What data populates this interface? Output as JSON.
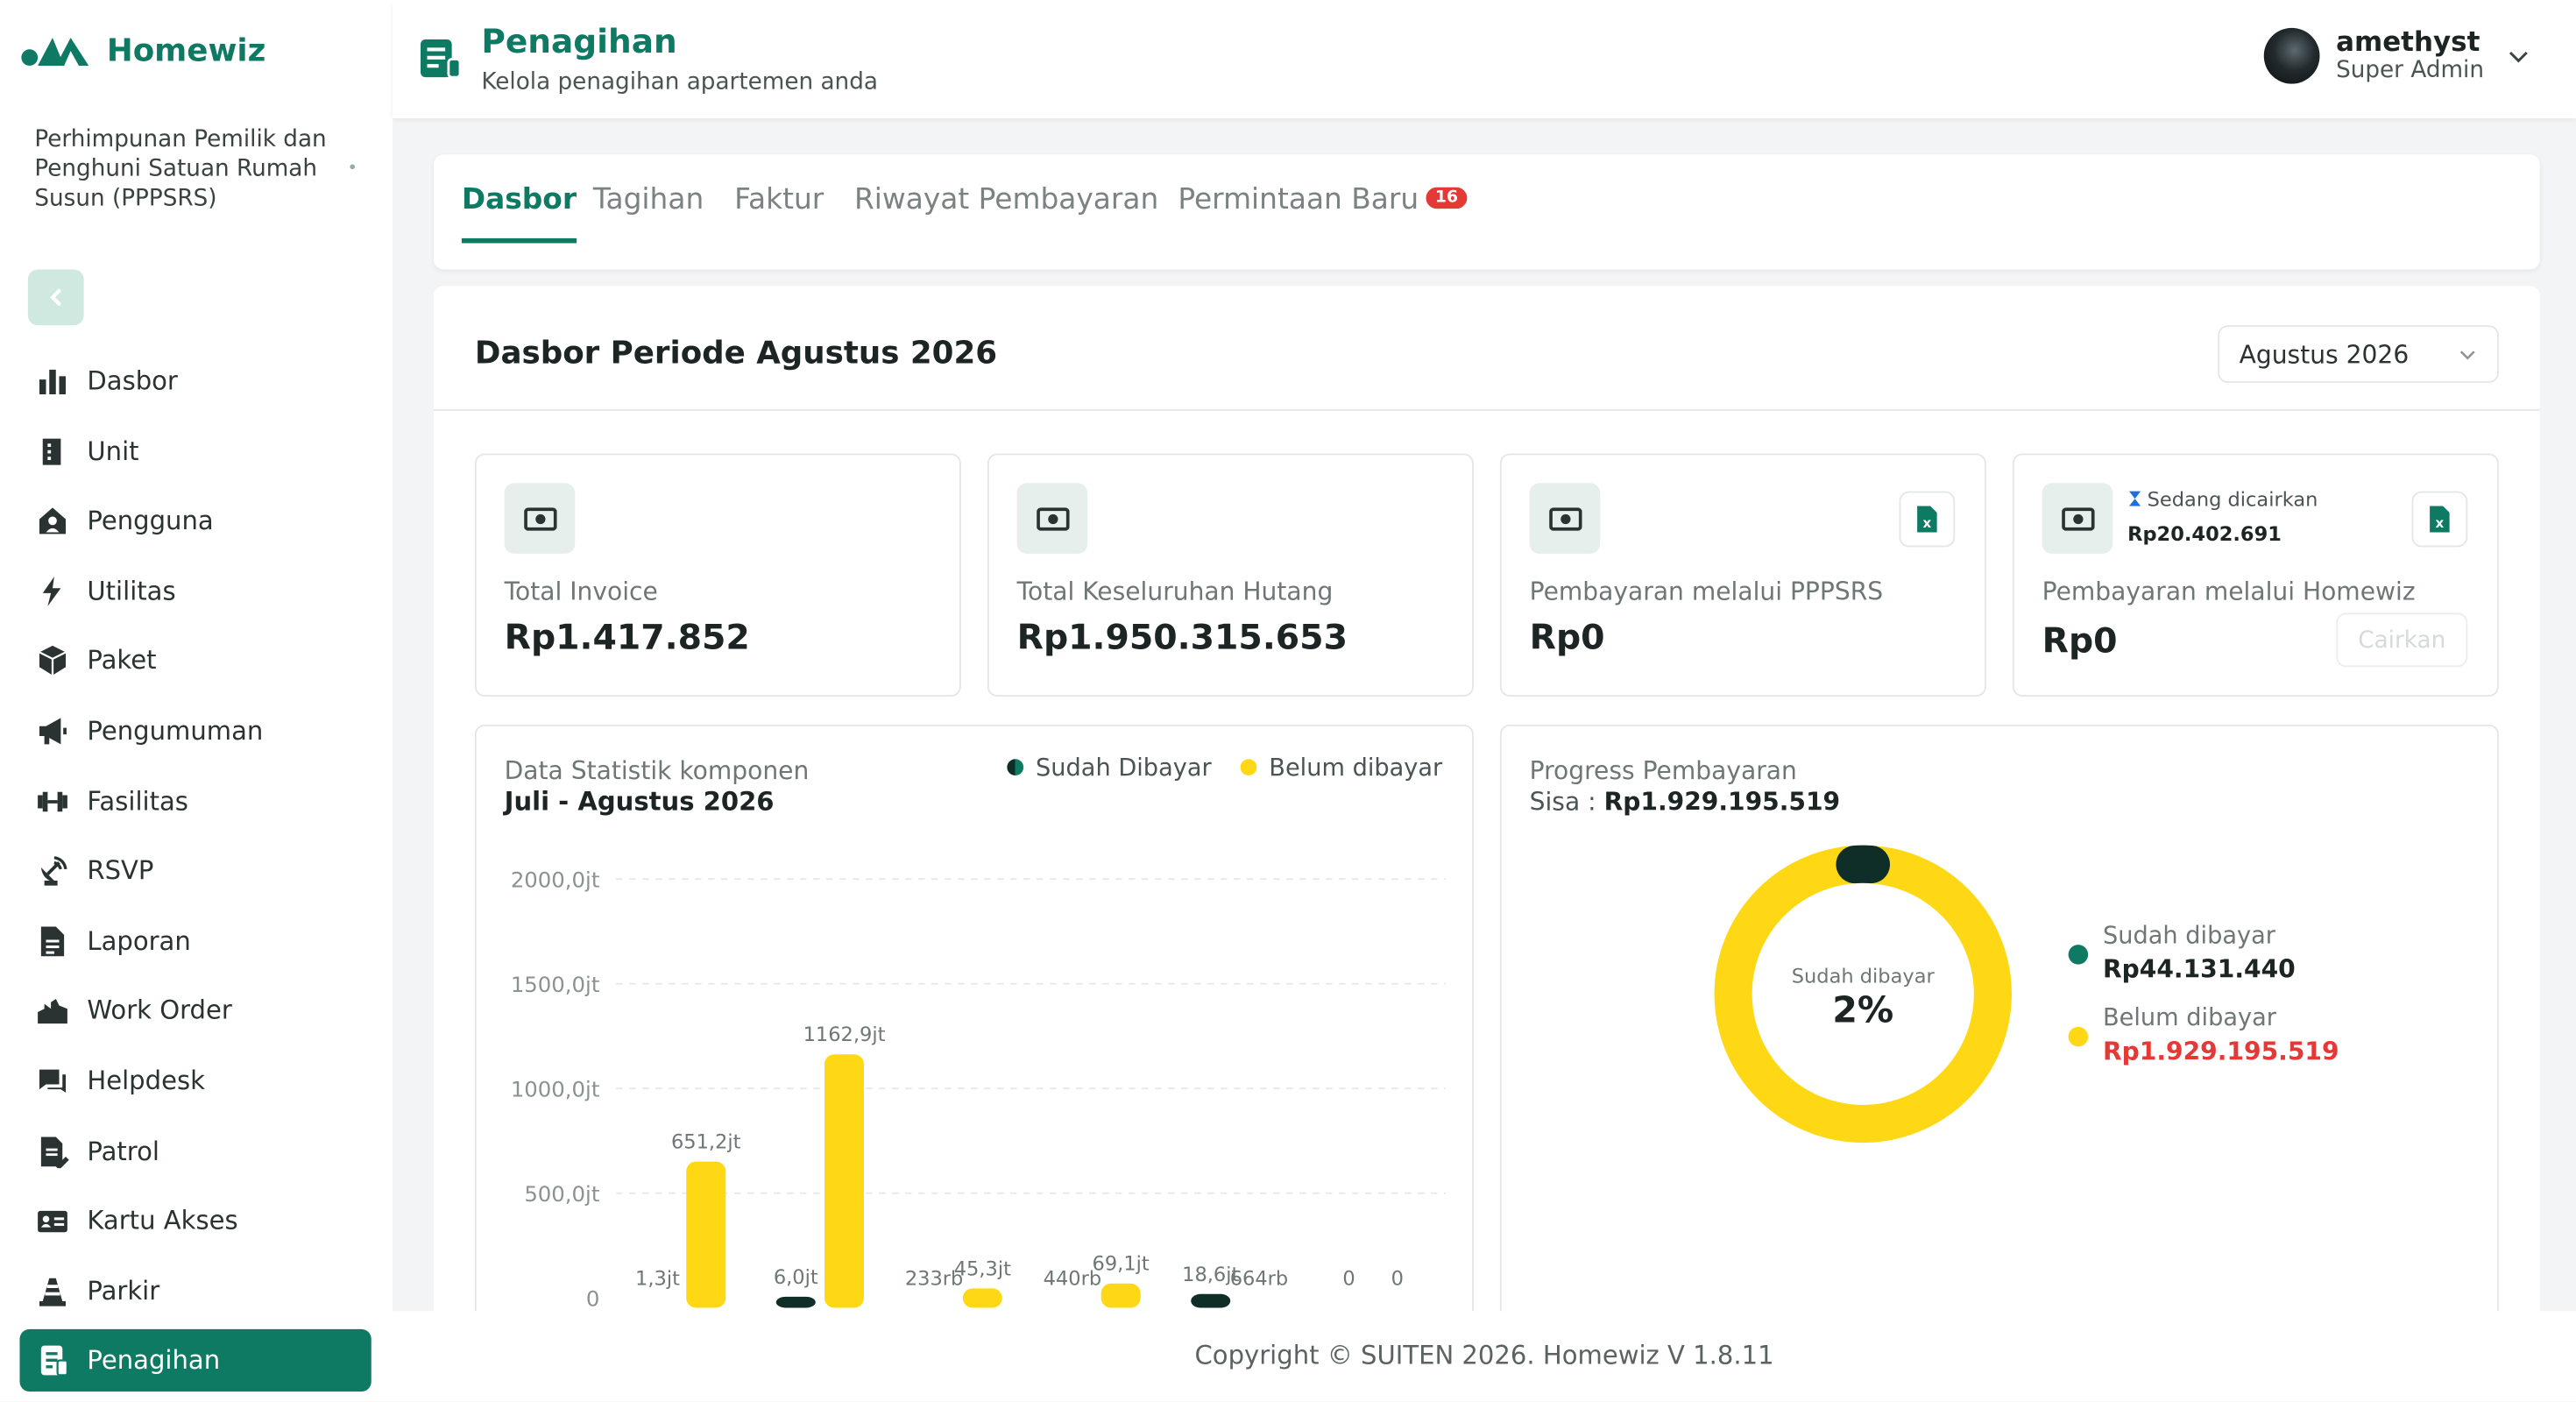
{
  "brand": {
    "name": "Homewiz"
  },
  "org_name": "Perhimpunan Pemilik dan Penghuni Satuan Rumah Susun (PPPSRS)",
  "nav": [
    {
      "label": "Dasbor",
      "icon": "bar-chart-icon"
    },
    {
      "label": "Unit",
      "icon": "building-icon"
    },
    {
      "label": "Pengguna",
      "icon": "user-home-icon"
    },
    {
      "label": "Utilitas",
      "icon": "bolt-icon"
    },
    {
      "label": "Paket",
      "icon": "package-icon"
    },
    {
      "label": "Pengumuman",
      "icon": "megaphone-icon"
    },
    {
      "label": "Fasilitas",
      "icon": "dumbbell-icon"
    },
    {
      "label": "RSVP",
      "icon": "satellite-icon"
    },
    {
      "label": "Laporan",
      "icon": "document-icon"
    },
    {
      "label": "Work Order",
      "icon": "factory-icon"
    },
    {
      "label": "Helpdesk",
      "icon": "chat-icon"
    },
    {
      "label": "Patrol",
      "icon": "patrol-icon"
    },
    {
      "label": "Kartu Akses",
      "icon": "id-card-icon"
    },
    {
      "label": "Parkir",
      "icon": "traffic-cone-icon"
    },
    {
      "label": "Penagihan",
      "icon": "invoice-icon",
      "active": true
    }
  ],
  "header": {
    "title": "Penagihan",
    "subtitle": "Kelola penagihan apartemen anda"
  },
  "user": {
    "name": "amethyst",
    "role": "Super Admin"
  },
  "tabs": [
    {
      "label": "Dasbor",
      "active": true
    },
    {
      "label": "Tagihan"
    },
    {
      "label": "Faktur"
    },
    {
      "label": "Riwayat Pembayaran"
    },
    {
      "label": "Permintaan Baru",
      "badge": "16"
    }
  ],
  "dashboard": {
    "title": "Dasbor Periode Agustus 2026",
    "period": "Agustus 2026",
    "cards": [
      {
        "label": "Total Invoice",
        "value": "Rp1.417.852"
      },
      {
        "label": "Total Keseluruhan Hutang",
        "value": "Rp1.950.315.653"
      },
      {
        "label": "Pembayaran melalui PPPSRS",
        "value": "Rp0"
      },
      {
        "label": "Pembayaran melalui Homewiz",
        "value": "Rp0",
        "pending_label": "Sedang dicairkan",
        "pending_amount": "Rp20.402.691",
        "button": "Cairkan"
      }
    ]
  },
  "stats_panel": {
    "label": "Data Statistik komponen",
    "period": "Juli - Agustus 2026"
  },
  "progress_panel": {
    "label": "Progress Pembayaran",
    "sisa_label": "Sisa :",
    "sisa_value": "Rp1.929.195.519",
    "center_label": "Sudah dibayar",
    "center_value": "2%",
    "paid_label": "Sudah dibayar",
    "paid_value": "Rp44.131.440",
    "unpaid_label": "Belum dibayar",
    "unpaid_value": "Rp1.929.195.519"
  },
  "colors": {
    "paid": "#0f7a63",
    "unpaid": "#ffd815",
    "negative": "#e53935",
    "paid_dark": "#0f2e28"
  },
  "chart_data": {
    "type": "bar",
    "y_ticks": [
      "0",
      "500,0jt",
      "1000,0jt",
      "1500,0jt",
      "2000,0jt"
    ],
    "ylim": [
      0,
      2000
    ],
    "y_unit": "jt",
    "series": [
      {
        "name": "Sudah Dibayar",
        "color": "#0f2e28",
        "values": [
          1.3,
          6.0,
          0.233,
          0.44,
          18.6,
          0
        ],
        "labels": [
          "1,3jt",
          "6,0jt",
          "233rb",
          "440rb",
          "18,6jt",
          "0"
        ]
      },
      {
        "name": "Belum dibayar",
        "color": "#ffd815",
        "values": [
          651.2,
          1162.9,
          45.3,
          69.1,
          0.664,
          0
        ],
        "labels": [
          "651,2jt",
          "1162,9jt",
          "45,3jt",
          "69,1jt",
          "664rb",
          "0"
        ]
      }
    ],
    "paid_share": 0.02
  },
  "footer": "Copyright © SUITEN 2026. Homewiz V 1.8.11"
}
